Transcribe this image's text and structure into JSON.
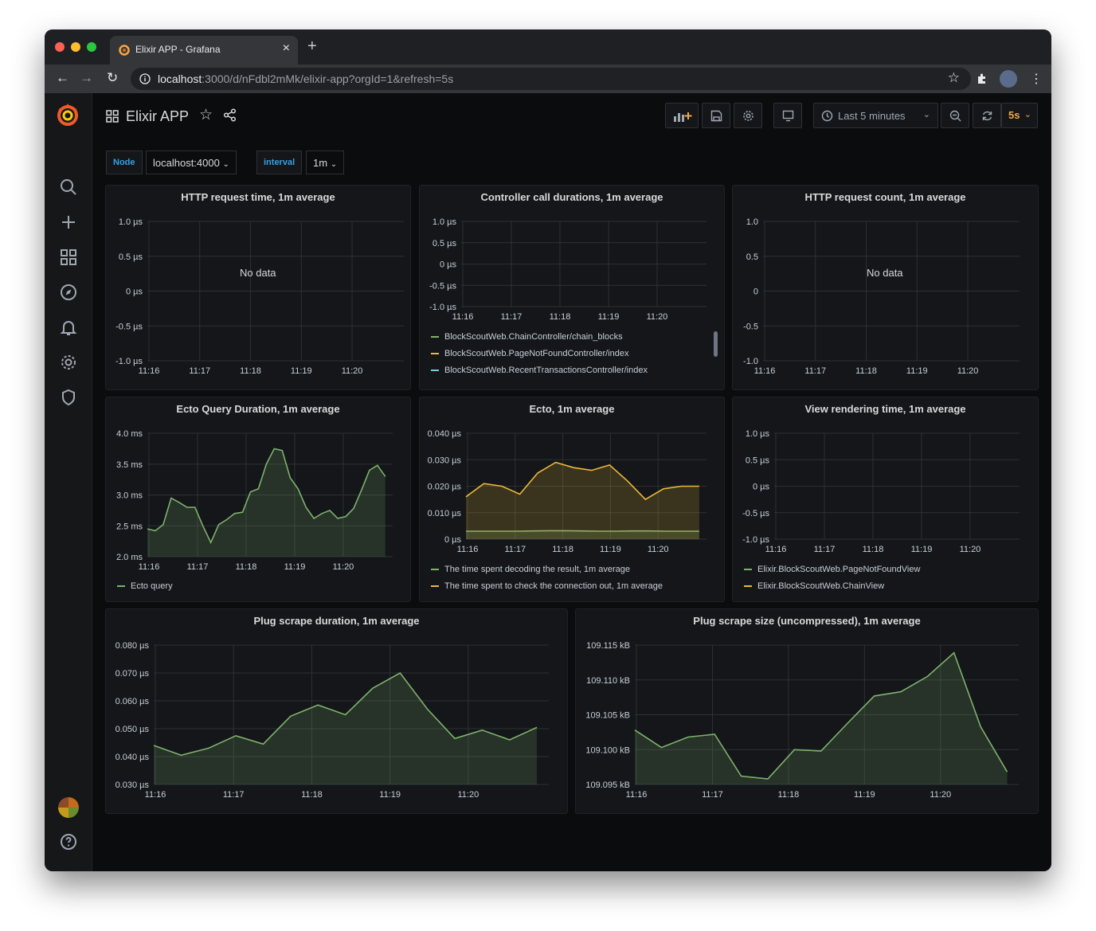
{
  "browser": {
    "tab_title": "Elixir APP - Grafana",
    "url_host": "localhost",
    "url_path": ":3000/d/nFdbl2mMk/elixir-app?orgId=1&refresh=5s"
  },
  "sidemenu": {
    "items": [
      "search-icon",
      "plus-icon",
      "dashboards-icon",
      "explore-icon",
      "alerting-icon",
      "configuration-icon",
      "shield-icon"
    ],
    "bottom": [
      "avatar",
      "help-icon"
    ]
  },
  "dashboard": {
    "title": "Elixir APP",
    "time_range": "Last 5 minutes",
    "refresh": "5s"
  },
  "variables": [
    {
      "label": "Node",
      "value": "localhost:4000"
    },
    {
      "label": "interval",
      "value": "1m"
    }
  ],
  "colors": {
    "green": "#7eb26d",
    "yellow": "#eab839",
    "cyan": "#6ed0e0",
    "accent": "#f2a84a",
    "text": "#d8d9da"
  },
  "panels": [
    {
      "title": "HTTP request time, 1m average",
      "no_data": "No data",
      "chart_data": {
        "type": "line",
        "x_ticks": [
          "11:16",
          "11:17",
          "11:18",
          "11:19",
          "11:20"
        ],
        "y_ticks": [
          "1.0 µs",
          "0.5 µs",
          "0 µs",
          "-0.5 µs",
          "-1.0 µs"
        ],
        "series": []
      }
    },
    {
      "title": "Controller call durations, 1m average",
      "chart_data": {
        "type": "line",
        "x_ticks": [
          "11:16",
          "11:17",
          "11:18",
          "11:19",
          "11:20"
        ],
        "y_ticks": [
          "1.0 µs",
          "0.5 µs",
          "0 µs",
          "-0.5 µs",
          "-1.0 µs"
        ],
        "series": [
          {
            "name": "BlockScoutWeb.ChainController/chain_blocks",
            "color": "#7eb26d",
            "values": []
          },
          {
            "name": "BlockScoutWeb.PageNotFoundController/index",
            "color": "#eab839",
            "values": []
          },
          {
            "name": "BlockScoutWeb.RecentTransactionsController/index",
            "color": "#6ed0e0",
            "values": []
          }
        ]
      }
    },
    {
      "title": "HTTP request count, 1m average",
      "no_data": "No data",
      "chart_data": {
        "type": "line",
        "x_ticks": [
          "11:16",
          "11:17",
          "11:18",
          "11:19",
          "11:20"
        ],
        "y_ticks": [
          "1.0",
          "0.5",
          "0",
          "-0.5",
          "-1.0"
        ],
        "series": []
      }
    },
    {
      "title": "Ecto Query Duration, 1m average",
      "chart_data": {
        "type": "area",
        "x_ticks": [
          "11:16",
          "11:17",
          "11:18",
          "11:19",
          "11:20"
        ],
        "y_ticks": [
          "4.0 ms",
          "3.5 ms",
          "3.0 ms",
          "2.5 ms",
          "2.0 ms"
        ],
        "ylim": [
          2.0,
          4.0
        ],
        "series": [
          {
            "name": "Ecto query",
            "color": "#7eb26d",
            "values": [
              2.45,
              2.42,
              2.52,
              2.95,
              2.88,
              2.8,
              2.8,
              2.5,
              2.23,
              2.52,
              2.6,
              2.7,
              2.72,
              3.05,
              3.1,
              3.5,
              3.75,
              3.72,
              3.28,
              3.1,
              2.8,
              2.62,
              2.7,
              2.75,
              2.62,
              2.65,
              2.78,
              3.08,
              3.4,
              3.48,
              3.3
            ]
          }
        ]
      }
    },
    {
      "title": "Ecto, 1m average",
      "chart_data": {
        "type": "area",
        "x_ticks": [
          "11:16",
          "11:17",
          "11:18",
          "11:19",
          "11:20"
        ],
        "y_ticks": [
          "0.040 µs",
          "0.030 µs",
          "0.020 µs",
          "0.010 µs",
          "0 µs"
        ],
        "ylim": [
          0,
          0.04
        ],
        "series": [
          {
            "name": "The time spent decoding the result, 1m average",
            "color": "#7eb26d",
            "values": [
              0.003,
              0.003,
              0.003,
              0.003,
              0.0031,
              0.0032,
              0.0032,
              0.0031,
              0.003,
              0.003,
              0.0031,
              0.0031,
              0.003,
              0.003,
              0.003
            ]
          },
          {
            "name": "The time spent to check the connection out, 1m average",
            "color": "#eab839",
            "values": [
              0.016,
              0.021,
              0.02,
              0.017,
              0.025,
              0.029,
              0.027,
              0.026,
              0.028,
              0.022,
              0.015,
              0.019,
              0.02,
              0.02
            ]
          }
        ]
      }
    },
    {
      "title": "View rendering time, 1m average",
      "chart_data": {
        "type": "line",
        "x_ticks": [
          "11:16",
          "11:17",
          "11:18",
          "11:19",
          "11:20"
        ],
        "y_ticks": [
          "1.0 µs",
          "0.5 µs",
          "0 µs",
          "-0.5 µs",
          "-1.0 µs"
        ],
        "series": [
          {
            "name": "Elixir.BlockScoutWeb.PageNotFoundView",
            "color": "#7eb26d",
            "values": []
          },
          {
            "name": "Elixir.BlockScoutWeb.ChainView",
            "color": "#eab839",
            "values": []
          }
        ]
      }
    },
    {
      "title": "Plug scrape duration, 1m average",
      "chart_data": {
        "type": "area",
        "x_ticks": [
          "11:16",
          "11:17",
          "11:18",
          "11:19",
          "11:20"
        ],
        "y_ticks": [
          "0.080 µs",
          "0.070 µs",
          "0.060 µs",
          "0.050 µs",
          "0.040 µs",
          "0.030 µs"
        ],
        "ylim": [
          0.03,
          0.08
        ],
        "series": [
          {
            "name": "",
            "color": "#7eb26d",
            "values": [
              0.044,
              0.0405,
              0.043,
              0.0475,
              0.0445,
              0.0545,
              0.0585,
              0.055,
              0.0645,
              0.07,
              0.057,
              0.0465,
              0.0495,
              0.046,
              0.0505
            ]
          }
        ]
      }
    },
    {
      "title": "Plug scrape size (uncompressed), 1m average",
      "chart_data": {
        "type": "area",
        "x_ticks": [
          "11:16",
          "11:17",
          "11:18",
          "11:19",
          "11:20"
        ],
        "y_ticks": [
          "109.115 kB",
          "109.110 kB",
          "109.105 kB",
          "109.100 kB",
          "109.095 kB"
        ],
        "ylim": [
          109.095,
          109.115
        ],
        "series": [
          {
            "name": "",
            "color": "#7eb26d",
            "values": [
              109.1028,
              109.1003,
              109.1018,
              109.1022,
              109.0962,
              109.0958,
              109.1,
              109.0998,
              109.1038,
              109.1077,
              109.1083,
              109.1105,
              109.1139,
              109.1033,
              109.0968
            ]
          }
        ]
      }
    }
  ]
}
